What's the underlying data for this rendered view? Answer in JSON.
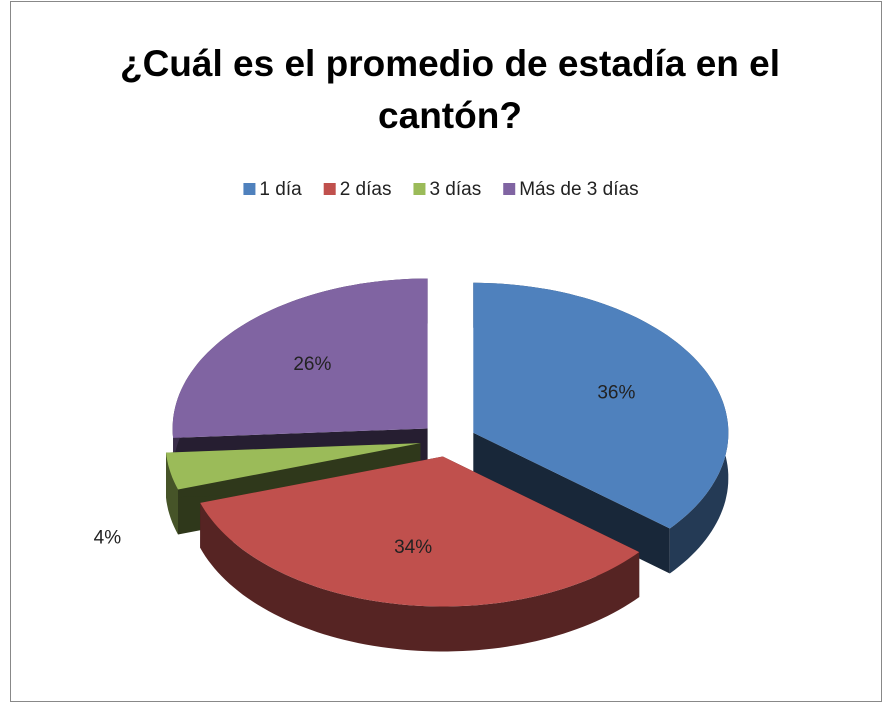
{
  "chart_data": {
    "type": "pie3d",
    "title": "¿Cuál es el promedio de estadía en el cantón?",
    "categories": [
      "1 día",
      "2 días",
      "3 días",
      "Más de 3 días"
    ],
    "values": [
      36,
      34,
      4,
      26
    ],
    "value_labels": [
      "36%",
      "34%",
      "4%",
      "26%"
    ],
    "colors": [
      "#4f81bd",
      "#c0504d",
      "#9bbb59",
      "#8064a2"
    ],
    "legend": "top"
  }
}
